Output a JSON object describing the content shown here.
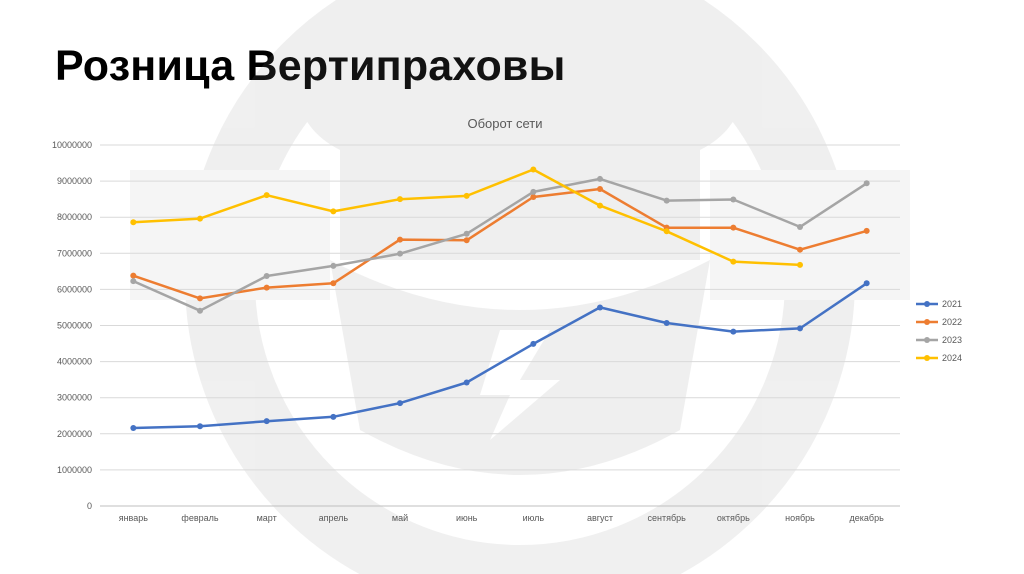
{
  "slide": {
    "title": "Розница Вертипраховы"
  },
  "chart_data": {
    "type": "line",
    "title": "Оборот сети",
    "xlabel": "",
    "ylabel": "",
    "ylim": [
      0,
      10000000
    ],
    "yticks": [
      0,
      1000000,
      2000000,
      3000000,
      4000000,
      5000000,
      6000000,
      7000000,
      8000000,
      9000000,
      10000000
    ],
    "grid": true,
    "legend_position": "right",
    "categories": [
      "январь",
      "февраль",
      "март",
      "апрель",
      "май",
      "июнь",
      "июль",
      "август",
      "сентябрь",
      "октябрь",
      "ноябрь",
      "декабрь"
    ],
    "series": [
      {
        "name": "2021",
        "color": "#4472C4",
        "values": [
          2160000,
          2210000,
          2350000,
          2470000,
          2850000,
          3420000,
          4490000,
          5500000,
          5070000,
          4830000,
          4920000,
          6170000
        ]
      },
      {
        "name": "2022",
        "color": "#ED7D31",
        "values": [
          6380000,
          5750000,
          6050000,
          6170000,
          7380000,
          7360000,
          8560000,
          8780000,
          7710000,
          7710000,
          7100000,
          7620000
        ]
      },
      {
        "name": "2023",
        "color": "#A5A5A5",
        "values": [
          6230000,
          5410000,
          6370000,
          6650000,
          6990000,
          7540000,
          8700000,
          9060000,
          8460000,
          8490000,
          7730000,
          8940000
        ]
      },
      {
        "name": "2024",
        "color": "#FFC000",
        "values": [
          7860000,
          7960000,
          8610000,
          8160000,
          8500000,
          8590000,
          9320000,
          8320000,
          7610000,
          6770000,
          6680000,
          null
        ]
      }
    ]
  }
}
